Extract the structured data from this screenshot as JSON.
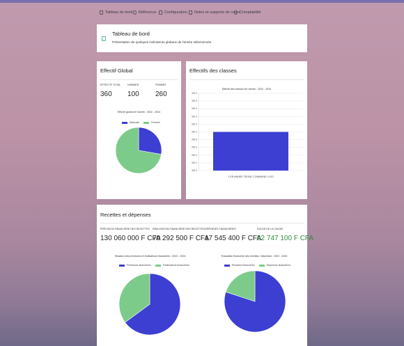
{
  "nav": {
    "items": [
      {
        "label": "Tableau de bord",
        "icon": "dashboard-icon"
      },
      {
        "label": "Référence",
        "icon": "reference-icon"
      },
      {
        "label": "Configuration",
        "icon": "configuration-icon"
      },
      {
        "label": "Notes et supports de cours",
        "icon": "notes-icon"
      },
      {
        "label": "Comptabilité",
        "icon": "accounting-icon"
      }
    ]
  },
  "header": {
    "title": "Tableau de bord",
    "subtitle": "Présentation de quelques indicateurs globaux de l'année sélectionnée",
    "icon": "dashboard-icon"
  },
  "effectif": {
    "title": "Effectif Global",
    "stats": [
      {
        "label": "EFFECTIF TOTAL",
        "value": "360"
      },
      {
        "label": "HOMMES",
        "value": "100"
      },
      {
        "label": "FEMMES",
        "value": "260"
      }
    ]
  },
  "classes": {
    "title": "Effectifs des classes"
  },
  "finances": {
    "title": "Recettes et dépenses",
    "stats": [
      {
        "label": "PRÉVISION FINANCIÈRE DES RECETTES",
        "value": "130 060 000 F CFA"
      },
      {
        "label": "RÉALISATION FINANCIÈRE DES RECETTES",
        "value": "70 292 500 F CFA"
      },
      {
        "label": "DÉPENSES FINANCIÈRES",
        "value": "17 545 400 F CFA"
      },
      {
        "label": "SOLDE DE LA CAISSE",
        "value": "52 747 100 F CFA"
      }
    ]
  },
  "colors": {
    "blue": "#3c3fd2",
    "green": "#7dcb8a",
    "accent_green": "#2e8b3e"
  },
  "chart_data": [
    {
      "type": "pie",
      "title": "Effectif global de l'année : 2022 - 2024",
      "legend_position": "top",
      "categories": [
        "Masculin",
        "Feminin"
      ],
      "values": [
        100,
        260
      ]
    },
    {
      "type": "bar",
      "title": "Effectif des classes de l'année : 2022 - 2024",
      "categories": [
        "1 ER ANNEE TRONC COMMUNE / LDO"
      ],
      "values": [
        360
      ],
      "ylim": [
        359,
        361
      ],
      "yticks": [
        "361.0",
        "360.8",
        "360.6",
        "360.4",
        "360.2",
        "360.0",
        "359.8",
        "359.6",
        "359.4",
        "359.2",
        "359.0"
      ],
      "grid": true
    },
    {
      "type": "pie",
      "title": "Situation des prévisions et réalisations financières : 2023 - 2024",
      "legend_position": "top",
      "categories": [
        "Prévisions financières",
        "Réalisations financières"
      ],
      "values": [
        130060000,
        70292500
      ]
    },
    {
      "type": "pie",
      "title": "Évaluation financière des recettes / dépenses : 2023 - 2024",
      "legend_position": "top",
      "categories": [
        "Recettes financières",
        "Dépenses financières"
      ],
      "values": [
        70292500,
        17545400
      ]
    }
  ]
}
